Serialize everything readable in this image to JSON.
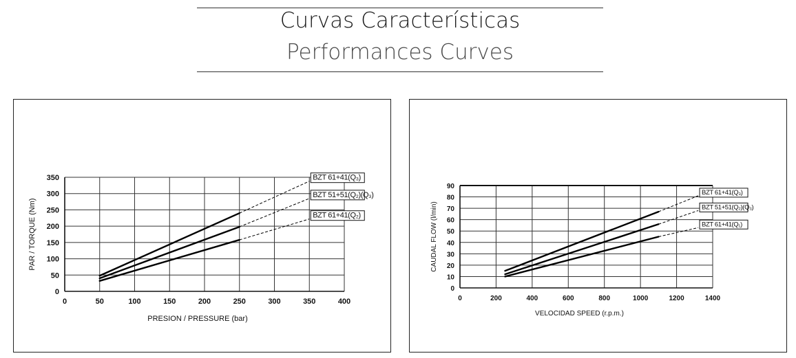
{
  "header": {
    "title": "Curvas Características",
    "subtitle": "Performances Curves"
  },
  "chart_data": [
    {
      "type": "line",
      "title": "",
      "xlabel": "PRESION / PRESSURE (bar)",
      "ylabel": "PAR / TORQUE (Nm)",
      "xlim": [
        0,
        400
      ],
      "ylim": [
        0,
        350
      ],
      "xticks": [
        0,
        50,
        100,
        150,
        200,
        250,
        300,
        350,
        400
      ],
      "yticks": [
        0,
        50,
        100,
        150,
        200,
        250,
        300,
        350
      ],
      "grid": true,
      "series": [
        {
          "name": "BZT 61+41(Q₃)",
          "solid": [
            [
              50,
              48
            ],
            [
              250,
              240
            ]
          ],
          "dashed": [
            [
              250,
              240
            ],
            [
              350,
              338
            ]
          ]
        },
        {
          "name": "BZT 51+51(Q₂)(Q₃)",
          "solid": [
            [
              50,
              40
            ],
            [
              250,
              198
            ]
          ],
          "dashed": [
            [
              250,
              198
            ],
            [
              350,
              285
            ]
          ]
        },
        {
          "name": "BZT 61+41(Q₂)",
          "solid": [
            [
              50,
              32
            ],
            [
              250,
              158
            ]
          ],
          "dashed": [
            [
              250,
              158
            ],
            [
              350,
              222
            ]
          ]
        }
      ]
    },
    {
      "type": "line",
      "title": "",
      "xlabel": "VELOCIDAD SPEED (r.p.m.)",
      "ylabel": "CAUDAL FLOW (l/min)",
      "xlim": [
        0,
        1400
      ],
      "ylim": [
        0,
        90
      ],
      "xticks": [
        0,
        200,
        400,
        600,
        800,
        1000,
        1200,
        1400
      ],
      "yticks": [
        0,
        10,
        20,
        30,
        40,
        50,
        60,
        70,
        80,
        90
      ],
      "grid": true,
      "series": [
        {
          "name": "BZT 61+41(Q₃)",
          "solid": [
            [
              250,
              15
            ],
            [
              1100,
              67
            ]
          ],
          "dashed": [
            [
              1100,
              67
            ],
            [
              1320,
              81
            ]
          ]
        },
        {
          "name": "BZT 51+51(Q₂)(Q₃)",
          "solid": [
            [
              250,
              12
            ],
            [
              1100,
              56
            ]
          ],
          "dashed": [
            [
              1100,
              56
            ],
            [
              1320,
              68
            ]
          ]
        },
        {
          "name": "BZT 61+41(Q₁)",
          "solid": [
            [
              250,
              10
            ],
            [
              1100,
              45
            ]
          ],
          "dashed": [
            [
              1100,
              45
            ],
            [
              1320,
              53
            ]
          ]
        }
      ]
    }
  ]
}
